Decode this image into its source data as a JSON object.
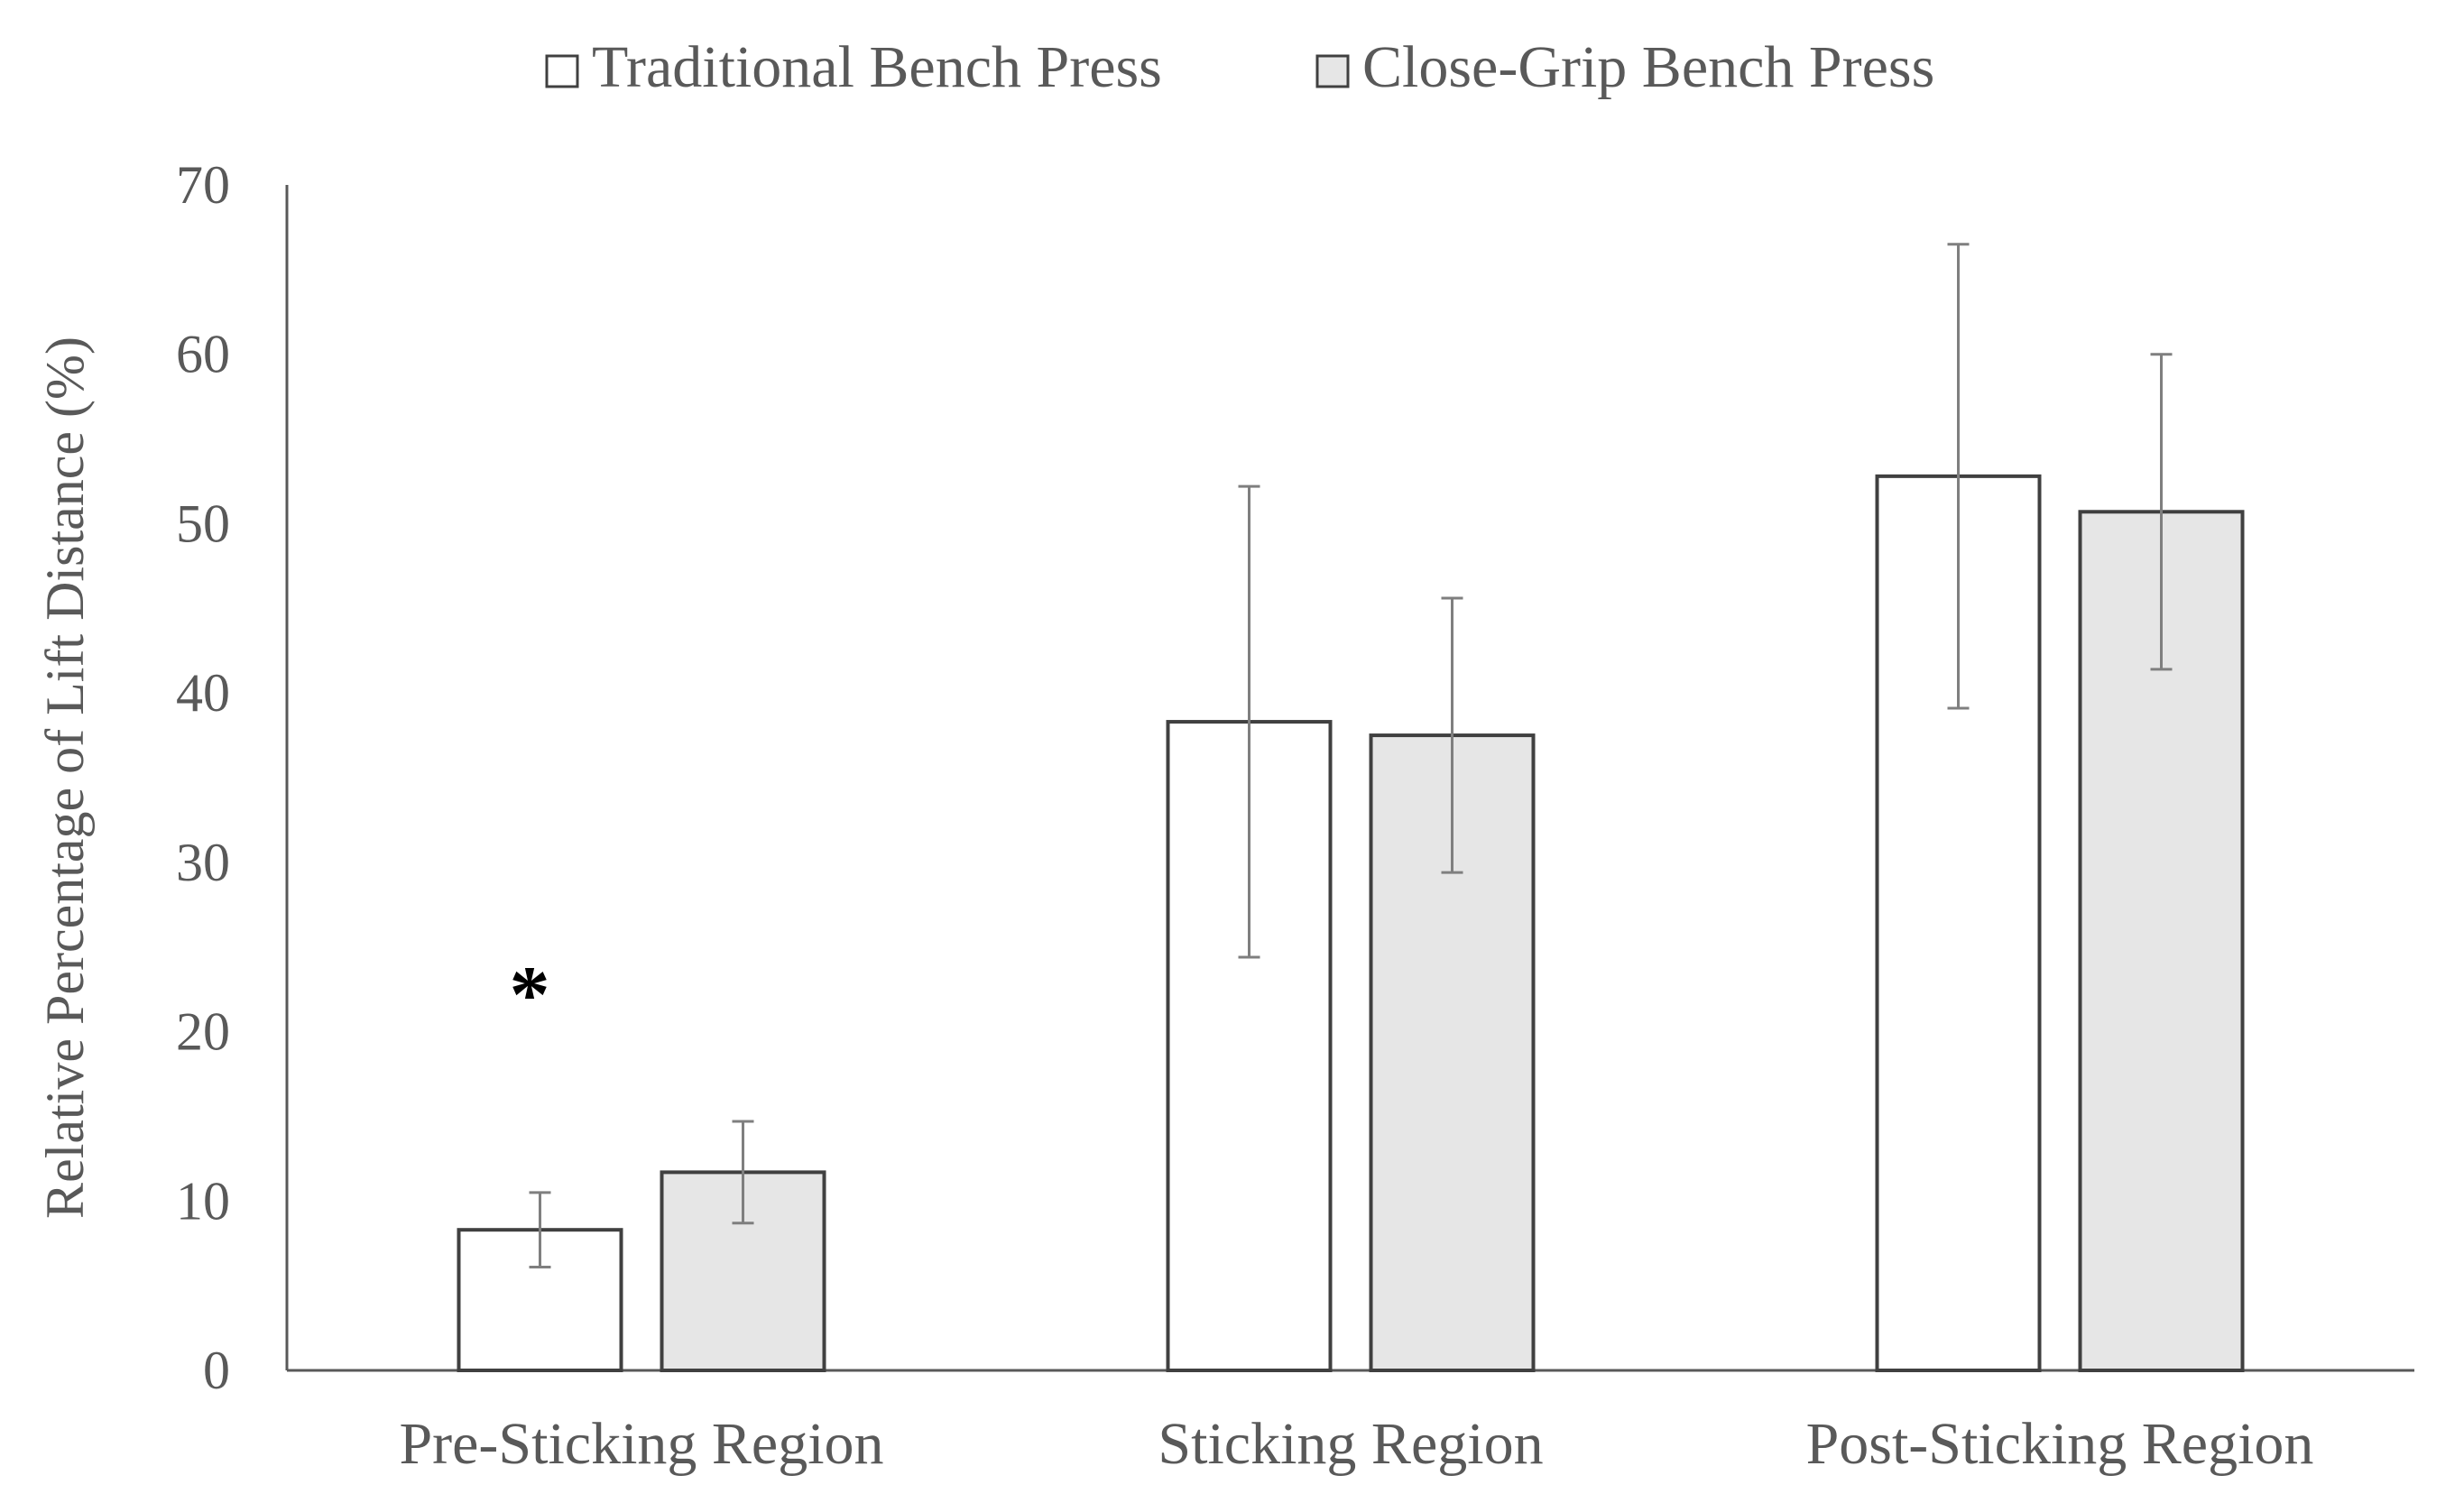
{
  "chart_data": {
    "type": "bar",
    "title": "",
    "xlabel": "",
    "ylabel": "Relative Percentage of Lift Distance (%)",
    "ylim": [
      0,
      70
    ],
    "yticks": [
      0,
      10,
      20,
      30,
      40,
      50,
      60,
      70
    ],
    "categories": [
      "Pre-Sticking Region",
      "Sticking Region",
      "Post-Sticking Region"
    ],
    "series": [
      {
        "name": "Traditional Bench Press",
        "values": [
          8.3,
          38.3,
          52.8
        ],
        "error": [
          2.2,
          13.9,
          13.7
        ],
        "color": "#ffffff"
      },
      {
        "name": "Close-Grip Bench Press",
        "values": [
          11.7,
          37.5,
          50.7
        ],
        "error": [
          3.0,
          8.1,
          9.3
        ],
        "color": "#e6e6e6"
      }
    ],
    "annotations": [
      {
        "text": "*",
        "category": "Pre-Sticking Region",
        "y": 23
      }
    ],
    "legend_position": "top-center",
    "grid": false,
    "colors": {
      "axis": "#595959",
      "bar_stroke": "#404040",
      "error_bar": "#7f7f7f",
      "text": "#595959",
      "annotation": "#000000"
    }
  }
}
